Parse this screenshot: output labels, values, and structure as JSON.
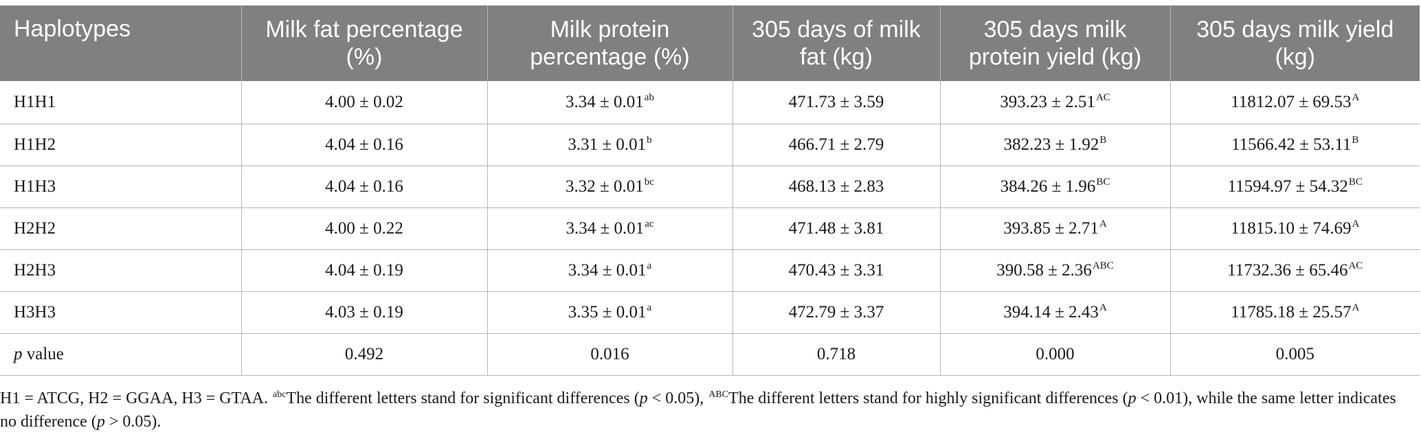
{
  "table": {
    "headers": [
      "Haplotypes",
      "Milk fat percentage (%)",
      "Milk protein percentage (%)",
      "305 days of milk fat (kg)",
      "305 days milk protein yield (kg)",
      "305 days milk yield (kg)"
    ],
    "rows": [
      {
        "haplotype": "H1H1",
        "fat_pct": "4.00 ± 0.02",
        "protein_pct": "3.34 ± 0.01",
        "protein_pct_sup": "ab",
        "fat_kg": "471.73 ± 3.59",
        "protein_kg": "393.23 ± 2.51",
        "protein_kg_sup": "AC",
        "milk_kg": "11812.07 ± 69.53",
        "milk_kg_sup": "A"
      },
      {
        "haplotype": "H1H2",
        "fat_pct": "4.04 ± 0.16",
        "protein_pct": "3.31 ± 0.01",
        "protein_pct_sup": "b",
        "fat_kg": "466.71 ± 2.79",
        "protein_kg": "382.23 ± 1.92",
        "protein_kg_sup": "B",
        "milk_kg": "11566.42 ± 53.11",
        "milk_kg_sup": "B"
      },
      {
        "haplotype": "H1H3",
        "fat_pct": "4.04 ± 0.16",
        "protein_pct": "3.32 ± 0.01",
        "protein_pct_sup": "bc",
        "fat_kg": "468.13 ± 2.83",
        "protein_kg": "384.26 ± 1.96",
        "protein_kg_sup": "BC",
        "milk_kg": "11594.97 ± 54.32",
        "milk_kg_sup": "BC"
      },
      {
        "haplotype": "H2H2",
        "fat_pct": "4.00 ± 0.22",
        "protein_pct": "3.34 ± 0.01",
        "protein_pct_sup": "ac",
        "fat_kg": "471.48 ± 3.81",
        "protein_kg": "393.85 ± 2.71",
        "protein_kg_sup": "A",
        "milk_kg": "11815.10 ± 74.69",
        "milk_kg_sup": "A"
      },
      {
        "haplotype": "H2H3",
        "fat_pct": "4.04 ± 0.19",
        "protein_pct": "3.34 ± 0.01",
        "protein_pct_sup": "a",
        "fat_kg": "470.43 ± 3.31",
        "protein_kg": "390.58 ± 2.36",
        "protein_kg_sup": "ABC",
        "milk_kg": "11732.36 ± 65.46",
        "milk_kg_sup": "AC"
      },
      {
        "haplotype": "H3H3",
        "fat_pct": "4.03 ± 0.19",
        "protein_pct": "3.35 ± 0.01",
        "protein_pct_sup": "a",
        "fat_kg": "472.79 ± 3.37",
        "protein_kg": "394.14 ± 2.43",
        "protein_kg_sup": "A",
        "milk_kg": "11785.18 ± 25.57",
        "milk_kg_sup": "A"
      }
    ],
    "pvalue_row": {
      "label_p": "p",
      "label_rest": " value",
      "fat_pct": "0.492",
      "protein_pct": "0.016",
      "fat_kg": "0.718",
      "protein_kg": "0.000",
      "milk_kg": "0.005"
    }
  },
  "footnote": {
    "part1": "H1 = ATCG, H2 = GGAA, H3 = GTAA. ",
    "sup1": "abc",
    "part2": "The different letters stand for significant differences (",
    "p1": "p",
    "part3": " < 0.05), ",
    "sup2": "ABC",
    "part4": "The different letters stand for highly significant differences (",
    "p2": "p",
    "part5": " < 0.01), while the same letter indicates no difference (",
    "p3": "p",
    "part6": " > 0.05)."
  }
}
